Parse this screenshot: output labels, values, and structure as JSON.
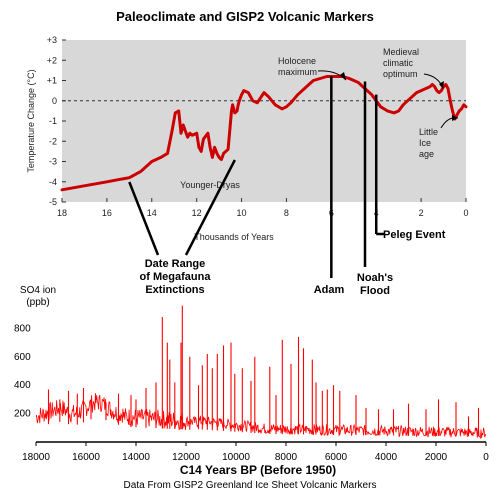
{
  "title": "Paleoclimate and GISP2 Volcanic Markers",
  "chart_data": [
    {
      "type": "line",
      "ylabel": "Temperature Change (°C)",
      "xlabel": "Thousands of Years",
      "xlim": [
        18,
        0
      ],
      "ylim": [
        -5,
        3
      ],
      "x_ticks": [
        "18",
        "16",
        "14",
        "12",
        "10",
        "8",
        "6",
        "4",
        "2",
        "0"
      ],
      "y_ticks": [
        "+3",
        "+2",
        "+1",
        "0",
        "-1",
        "-2",
        "-3",
        "-4",
        "-5"
      ],
      "series": [
        {
          "x": [
            18,
            17.5,
            17,
            16.5,
            16,
            15.5,
            15,
            14.5,
            14,
            13.6,
            13.3,
            13.1,
            12.95,
            12.8,
            12.7,
            12.6,
            12.5,
            12.4,
            12.3,
            12.2,
            12.0,
            11.9,
            11.8,
            11.7,
            11.5,
            11.4,
            11.3,
            11.2,
            11.1,
            11.0,
            10.9,
            10.8,
            10.6,
            10.45,
            10.4,
            10.3,
            10.2,
            10.15,
            10.1,
            10.0,
            9.9,
            9.7,
            9.5,
            9.3,
            9.0,
            8.8,
            8.5,
            8.2,
            8.0,
            7.8,
            7.5,
            7.2,
            7.0,
            6.8,
            6.5,
            6.2,
            6.0,
            5.8,
            5.5,
            5.2,
            5.0,
            4.8,
            4.5,
            4.2,
            4.0,
            3.8,
            3.5,
            3.2,
            3.0,
            2.8,
            2.5,
            2.2,
            2.0,
            1.8,
            1.6,
            1.5,
            1.4,
            1.3,
            1.2,
            1.1,
            1.0,
            0.9,
            0.8,
            0.7,
            0.6,
            0.5,
            0.4,
            0.3,
            0.2,
            0.1,
            0.0
          ],
          "y": [
            -4.4,
            -4.3,
            -4.2,
            -4.1,
            -4.0,
            -3.9,
            -3.8,
            -3.5,
            -3.0,
            -2.8,
            -2.6,
            -1.5,
            -0.6,
            -0.5,
            -1.6,
            -1.2,
            -1.5,
            -1.8,
            -1.6,
            -1.7,
            -1.6,
            -2.3,
            -2.5,
            -1.9,
            -1.6,
            -2.3,
            -2.8,
            -2.3,
            -2.6,
            -2.8,
            -2.9,
            -2.6,
            -2.4,
            -0.5,
            -0.2,
            -0.6,
            -0.5,
            -0.2,
            0.0,
            0.3,
            0.5,
            0.4,
            0.0,
            -0.1,
            0.4,
            0.2,
            -0.2,
            -0.4,
            -0.3,
            -0.1,
            0.3,
            0.6,
            0.8,
            1.0,
            1.1,
            1.2,
            1.2,
            1.2,
            1.2,
            1.1,
            1.0,
            0.9,
            0.6,
            0.3,
            0.0,
            -0.3,
            -0.5,
            -0.6,
            -0.5,
            -0.2,
            0.1,
            0.4,
            0.5,
            0.6,
            0.7,
            0.8,
            0.7,
            0.5,
            0.4,
            0.5,
            0.7,
            0.8,
            0.6,
            0.0,
            -0.5,
            -0.9,
            -0.7,
            -0.5,
            -0.4,
            -0.2,
            -0.3
          ]
        }
      ],
      "zero_line": 0,
      "annotations": {
        "holocene": "Holocene maximum",
        "medieval": "Medieval climatic optimum",
        "little_ice": "Little Ice age",
        "younger_dryas": "Younger-Dryas"
      },
      "callouts": {
        "megafauna": [
          "Date Range",
          "of Megafauna",
          "Extinctions"
        ],
        "megafauna_range": [
          15.0,
          10.3
        ],
        "adam": "Adam",
        "adam_x": 6.0,
        "noahs": [
          "Noah's",
          "Flood"
        ],
        "noahs_x": 4.5,
        "peleg": "Peleg Event",
        "peleg_x": 4.0
      }
    },
    {
      "type": "line",
      "ylabel": [
        "SO4 ion",
        "(ppb)"
      ],
      "xlabel": "C14 Years BP (Before 1950)",
      "xlim": [
        18000,
        0
      ],
      "ylim": [
        0,
        1000
      ],
      "x_ticks": [
        "18000",
        "16000",
        "14000",
        "12000",
        "10000",
        "8000",
        "6000",
        "4000",
        "2000",
        "0"
      ],
      "y_ticks": [
        "800",
        "600",
        "400",
        "200"
      ],
      "series": [
        {
          "name": "SO4",
          "color": "#ff0000",
          "spikes": [
            [
              17500,
              370
            ],
            [
              17050,
              300
            ],
            [
              16700,
              360
            ],
            [
              16350,
              340
            ],
            [
              16100,
              380
            ],
            [
              15800,
              300
            ],
            [
              15200,
              280
            ],
            [
              14700,
              340
            ],
            [
              14200,
              330
            ],
            [
              14000,
              300
            ],
            [
              13600,
              380
            ],
            [
              13200,
              420
            ],
            [
              12950,
              880
            ],
            [
              12750,
              700
            ],
            [
              12650,
              580
            ],
            [
              12450,
              420
            ],
            [
              12200,
              700
            ],
            [
              12150,
              960
            ],
            [
              11850,
              600
            ],
            [
              11500,
              400
            ],
            [
              11350,
              540
            ],
            [
              11150,
              620
            ],
            [
              10950,
              520
            ],
            [
              10750,
              620
            ],
            [
              10500,
              680
            ],
            [
              10200,
              700
            ],
            [
              10050,
              480
            ],
            [
              9750,
              520
            ],
            [
              9400,
              430
            ],
            [
              9250,
              600
            ],
            [
              8650,
              530
            ],
            [
              8400,
              330
            ],
            [
              8150,
              720
            ],
            [
              7800,
              550
            ],
            [
              7500,
              740
            ],
            [
              7300,
              660
            ],
            [
              6950,
              580
            ],
            [
              6800,
              420
            ],
            [
              6550,
              360
            ],
            [
              6350,
              370
            ],
            [
              6100,
              400
            ],
            [
              5850,
              360
            ],
            [
              5200,
              330
            ],
            [
              4800,
              240
            ],
            [
              4300,
              230
            ],
            [
              3700,
              230
            ],
            [
              3100,
              270
            ],
            [
              2400,
              230
            ],
            [
              1900,
              300
            ],
            [
              1200,
              280
            ],
            [
              700,
              180
            ],
            [
              300,
              240
            ]
          ]
        }
      ]
    }
  ],
  "source": "Data From GISP2 Greenland Ice Sheet Volcanic Markers"
}
